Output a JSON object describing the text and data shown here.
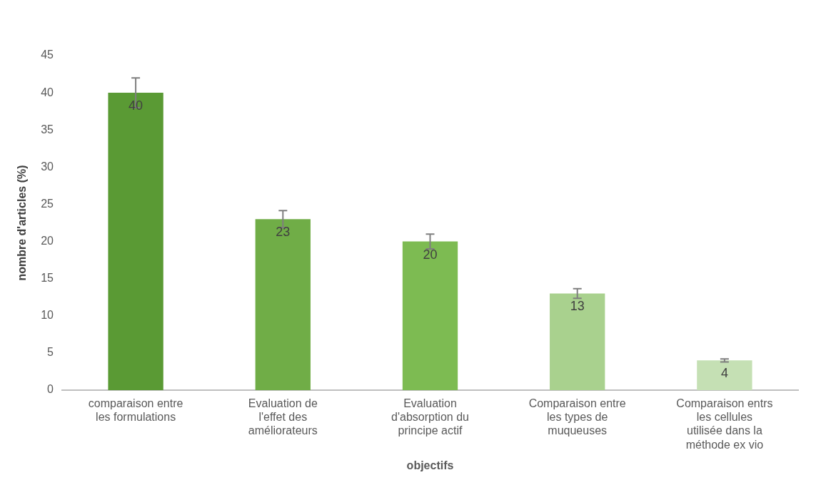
{
  "chart_data": {
    "type": "bar",
    "categories": [
      "comparaison entre les formulations",
      "Evaluation de l'effet des améliorateurs",
      "Evaluation d'absorption du principe actif",
      "Comparaison entre les types de muqueuses",
      "Comparaison entrs les cellules utilisée dans la méthode ex vio"
    ],
    "values": [
      40,
      23,
      20,
      13,
      4
    ],
    "colors": [
      "#5a9a34",
      "#70ad47",
      "#7dbb52",
      "#a9d18e",
      "#c5e0b4"
    ],
    "errors": [
      2,
      1.15,
      1,
      0.65,
      0.2
    ],
    "xlabel": "objectifs",
    "ylabel": "nombre d'articles (%)",
    "ylim": [
      0,
      45
    ],
    "yticks": [
      0,
      5,
      10,
      15,
      20,
      25,
      30,
      35,
      40,
      45
    ],
    "data_labels": true,
    "grid": false,
    "legend": false
  }
}
